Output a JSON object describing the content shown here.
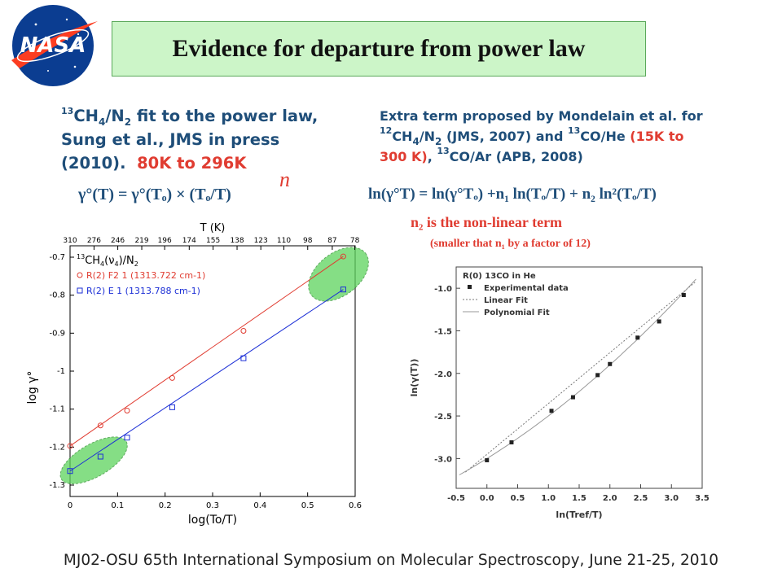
{
  "title": "Evidence for departure from power law",
  "left_text": {
    "line1_pre": "13",
    "line1_main": "CH",
    "line1_sub1": "4",
    "line1_mid": "/N",
    "line1_sub2": "2",
    "line1_rest": " fit to the power law,",
    "line2": "Sung et al., JMS in press",
    "line3_pre": "(2010).",
    "line3_red": "80K to 296K",
    "equation": "γ°(T) = γ°(Tₒ) × (Tₒ/T)",
    "equation_exp": "n"
  },
  "right_text": {
    "line1": "Extra term proposed by Mondelain et al. for",
    "line2_pre": "12",
    "line2_a": "CH",
    "line2_sub1": "4",
    "line2_b": "/N",
    "line2_sub2": "2",
    "line2_c": " (JMS, 2007) and ",
    "line2_pre2": "13",
    "line2_d": "CO/He",
    "line2_red": " (15K to",
    "line3_red": "300 K)",
    "line3_a": ", ",
    "line3_pre": "13",
    "line3_b": "CO/Ar (APB, 2008)",
    "equation": "ln(γ°T) = ln(γ°Tₒ) +n₁ ln(Tₒ/T) + n₂ ln²(Tₒ/T)",
    "n2_note": "n₂ is the non-linear term",
    "n2_sub": "(smaller that n₁ by a factor of 12)"
  },
  "left_chart": {
    "type": "scatter",
    "xlabel": "log(To/T)",
    "ylabel": "log γ°",
    "top_label": "T (K)",
    "xlim": [
      0,
      0.6
    ],
    "ylim": [
      -1.33,
      -0.67
    ],
    "x_ticks": [
      "0",
      "0.1",
      "0.2",
      "0.3",
      "0.4",
      "0.5",
      "0.6"
    ],
    "y_ticks": [
      "-0.7",
      "-0.8",
      "-0.9",
      "-1",
      "-1.1",
      "-1.2",
      "-1.3"
    ],
    "top_ticks": [
      "310",
      "276",
      "246",
      "219",
      "196",
      "174",
      "155",
      "138",
      "123",
      "110",
      "98",
      "87",
      "78"
    ],
    "legend_title": "13CH4(ν4)/N2",
    "series": [
      {
        "name": "R(2) F2 1 (1313.722 cm-1)",
        "color": "#e03c31",
        "marker": "circle",
        "x": [
          0,
          0.064,
          0.12,
          0.215,
          0.365,
          0.575
        ],
        "y": [
          -1.197,
          -1.143,
          -1.104,
          -1.018,
          -0.894,
          -0.698
        ]
      },
      {
        "name": "R(2) E  1 (1313.788 cm-1)",
        "color": "#1c2fd6",
        "marker": "square",
        "x": [
          0,
          0.064,
          0.12,
          0.215,
          0.365,
          0.575
        ],
        "y": [
          -1.263,
          -1.225,
          -1.175,
          -1.095,
          -0.966,
          -0.785
        ]
      }
    ]
  },
  "right_chart": {
    "type": "scatter",
    "title": "R(0) 13CO in He",
    "xlabel": "ln(Tref/T)",
    "ylabel": "ln(γ(T))",
    "xlim": [
      -0.5,
      3.5
    ],
    "ylim": [
      -3.35,
      -0.75
    ],
    "x_ticks": [
      "-0.5",
      "0.0",
      "0.5",
      "1.0",
      "1.5",
      "2.0",
      "2.5",
      "3.0",
      "3.5"
    ],
    "y_ticks": [
      "-1.0",
      "-1.5",
      "-2.0",
      "-2.5",
      "-3.0"
    ],
    "legend": [
      "Experimental data",
      "Linear Fit",
      "Polynomial Fit"
    ],
    "points": {
      "x": [
        0.0,
        0.4,
        1.05,
        1.4,
        1.8,
        2.0,
        2.45,
        2.8,
        3.2
      ],
      "y": [
        -3.02,
        -2.81,
        -2.44,
        -2.28,
        -2.02,
        -1.89,
        -1.58,
        -1.39,
        -1.08
      ]
    }
  },
  "footer": "MJ02-OSU 65th International Symposium on Molecular Spectroscopy, June 21-25, 2010",
  "logo_text": "NASA",
  "colors": {
    "title_bg": "#ccf5c8",
    "text_blue": "#1f4e79",
    "accent_red": "#e03c31",
    "series_blue": "#1c2fd6",
    "ellipse": "#5dd35d"
  }
}
